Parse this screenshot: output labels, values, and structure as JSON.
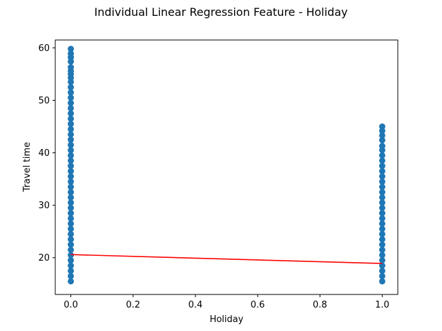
{
  "chart_data": {
    "type": "scatter",
    "title": "Individual Linear Regression Feature - Holiday",
    "xlabel": "Holiday",
    "ylabel": "Travel time",
    "xlim": [
      -0.05,
      1.05
    ],
    "ylim": [
      13,
      61.5
    ],
    "xticks": [
      0.0,
      0.2,
      0.4,
      0.6,
      0.8,
      1.0
    ],
    "xtick_labels": [
      "0.0",
      "0.2",
      "0.4",
      "0.6",
      "0.8",
      "1.0"
    ],
    "yticks": [
      20,
      30,
      40,
      50,
      60
    ],
    "ytick_labels": [
      "20",
      "30",
      "40",
      "50",
      "60"
    ],
    "grid": false,
    "series": [
      {
        "kind": "scatter",
        "color": "#1f77b4",
        "points": [
          {
            "x": 0,
            "y": 15.5
          },
          {
            "x": 0,
            "y": 16.5
          },
          {
            "x": 0,
            "y": 17.5
          },
          {
            "x": 0,
            "y": 18.5
          },
          {
            "x": 0,
            "y": 19.5
          },
          {
            "x": 0,
            "y": 20.5
          },
          {
            "x": 0,
            "y": 21.5
          },
          {
            "x": 0,
            "y": 22.5
          },
          {
            "x": 0,
            "y": 23.5
          },
          {
            "x": 0,
            "y": 24.5
          },
          {
            "x": 0,
            "y": 25.5
          },
          {
            "x": 0,
            "y": 26.5
          },
          {
            "x": 0,
            "y": 27.5
          },
          {
            "x": 0,
            "y": 28.5
          },
          {
            "x": 0,
            "y": 29.5
          },
          {
            "x": 0,
            "y": 30.5
          },
          {
            "x": 0,
            "y": 31.5
          },
          {
            "x": 0,
            "y": 32.5
          },
          {
            "x": 0,
            "y": 33.5
          },
          {
            "x": 0,
            "y": 34.5
          },
          {
            "x": 0,
            "y": 35.5
          },
          {
            "x": 0,
            "y": 36.5
          },
          {
            "x": 0,
            "y": 37.5
          },
          {
            "x": 0,
            "y": 38.5
          },
          {
            "x": 0,
            "y": 39.5
          },
          {
            "x": 0,
            "y": 40.5
          },
          {
            "x": 0,
            "y": 41.5
          },
          {
            "x": 0,
            "y": 42.5
          },
          {
            "x": 0,
            "y": 43.5
          },
          {
            "x": 0,
            "y": 44.5
          },
          {
            "x": 0,
            "y": 45.5
          },
          {
            "x": 0,
            "y": 46.5
          },
          {
            "x": 0,
            "y": 47.5
          },
          {
            "x": 0,
            "y": 48.5
          },
          {
            "x": 0,
            "y": 49.5
          },
          {
            "x": 0,
            "y": 50.5
          },
          {
            "x": 0,
            "y": 51.5
          },
          {
            "x": 0,
            "y": 52.5
          },
          {
            "x": 0,
            "y": 53.5
          },
          {
            "x": 0,
            "y": 54.3
          },
          {
            "x": 0,
            "y": 55.0
          },
          {
            "x": 0,
            "y": 55.6
          },
          {
            "x": 0,
            "y": 56.3
          },
          {
            "x": 0,
            "y": 57.4
          },
          {
            "x": 0,
            "y": 58.2
          },
          {
            "x": 0,
            "y": 58.9
          },
          {
            "x": 0,
            "y": 59.8
          },
          {
            "x": 1,
            "y": 15.5
          },
          {
            "x": 1,
            "y": 16.5
          },
          {
            "x": 1,
            "y": 17.5
          },
          {
            "x": 1,
            "y": 18.5
          },
          {
            "x": 1,
            "y": 19.5
          },
          {
            "x": 1,
            "y": 20.5
          },
          {
            "x": 1,
            "y": 21.5
          },
          {
            "x": 1,
            "y": 22.5
          },
          {
            "x": 1,
            "y": 23.5
          },
          {
            "x": 1,
            "y": 24.5
          },
          {
            "x": 1,
            "y": 25.5
          },
          {
            "x": 1,
            "y": 26.5
          },
          {
            "x": 1,
            "y": 27.5
          },
          {
            "x": 1,
            "y": 28.5
          },
          {
            "x": 1,
            "y": 29.5
          },
          {
            "x": 1,
            "y": 30.5
          },
          {
            "x": 1,
            "y": 31.5
          },
          {
            "x": 1,
            "y": 32.5
          },
          {
            "x": 1,
            "y": 33.5
          },
          {
            "x": 1,
            "y": 34.5
          },
          {
            "x": 1,
            "y": 35.5
          },
          {
            "x": 1,
            "y": 36.5
          },
          {
            "x": 1,
            "y": 37.5
          },
          {
            "x": 1,
            "y": 38.5
          },
          {
            "x": 1,
            "y": 39.5
          },
          {
            "x": 1,
            "y": 40.5
          },
          {
            "x": 1,
            "y": 41.3
          },
          {
            "x": 1,
            "y": 42.4
          },
          {
            "x": 1,
            "y": 43.3
          },
          {
            "x": 1,
            "y": 44.2
          },
          {
            "x": 1,
            "y": 45.0
          }
        ]
      },
      {
        "kind": "line",
        "color": "#ff0000",
        "points": [
          {
            "x": 0,
            "y": 20.6
          },
          {
            "x": 1,
            "y": 18.9
          }
        ]
      }
    ]
  }
}
